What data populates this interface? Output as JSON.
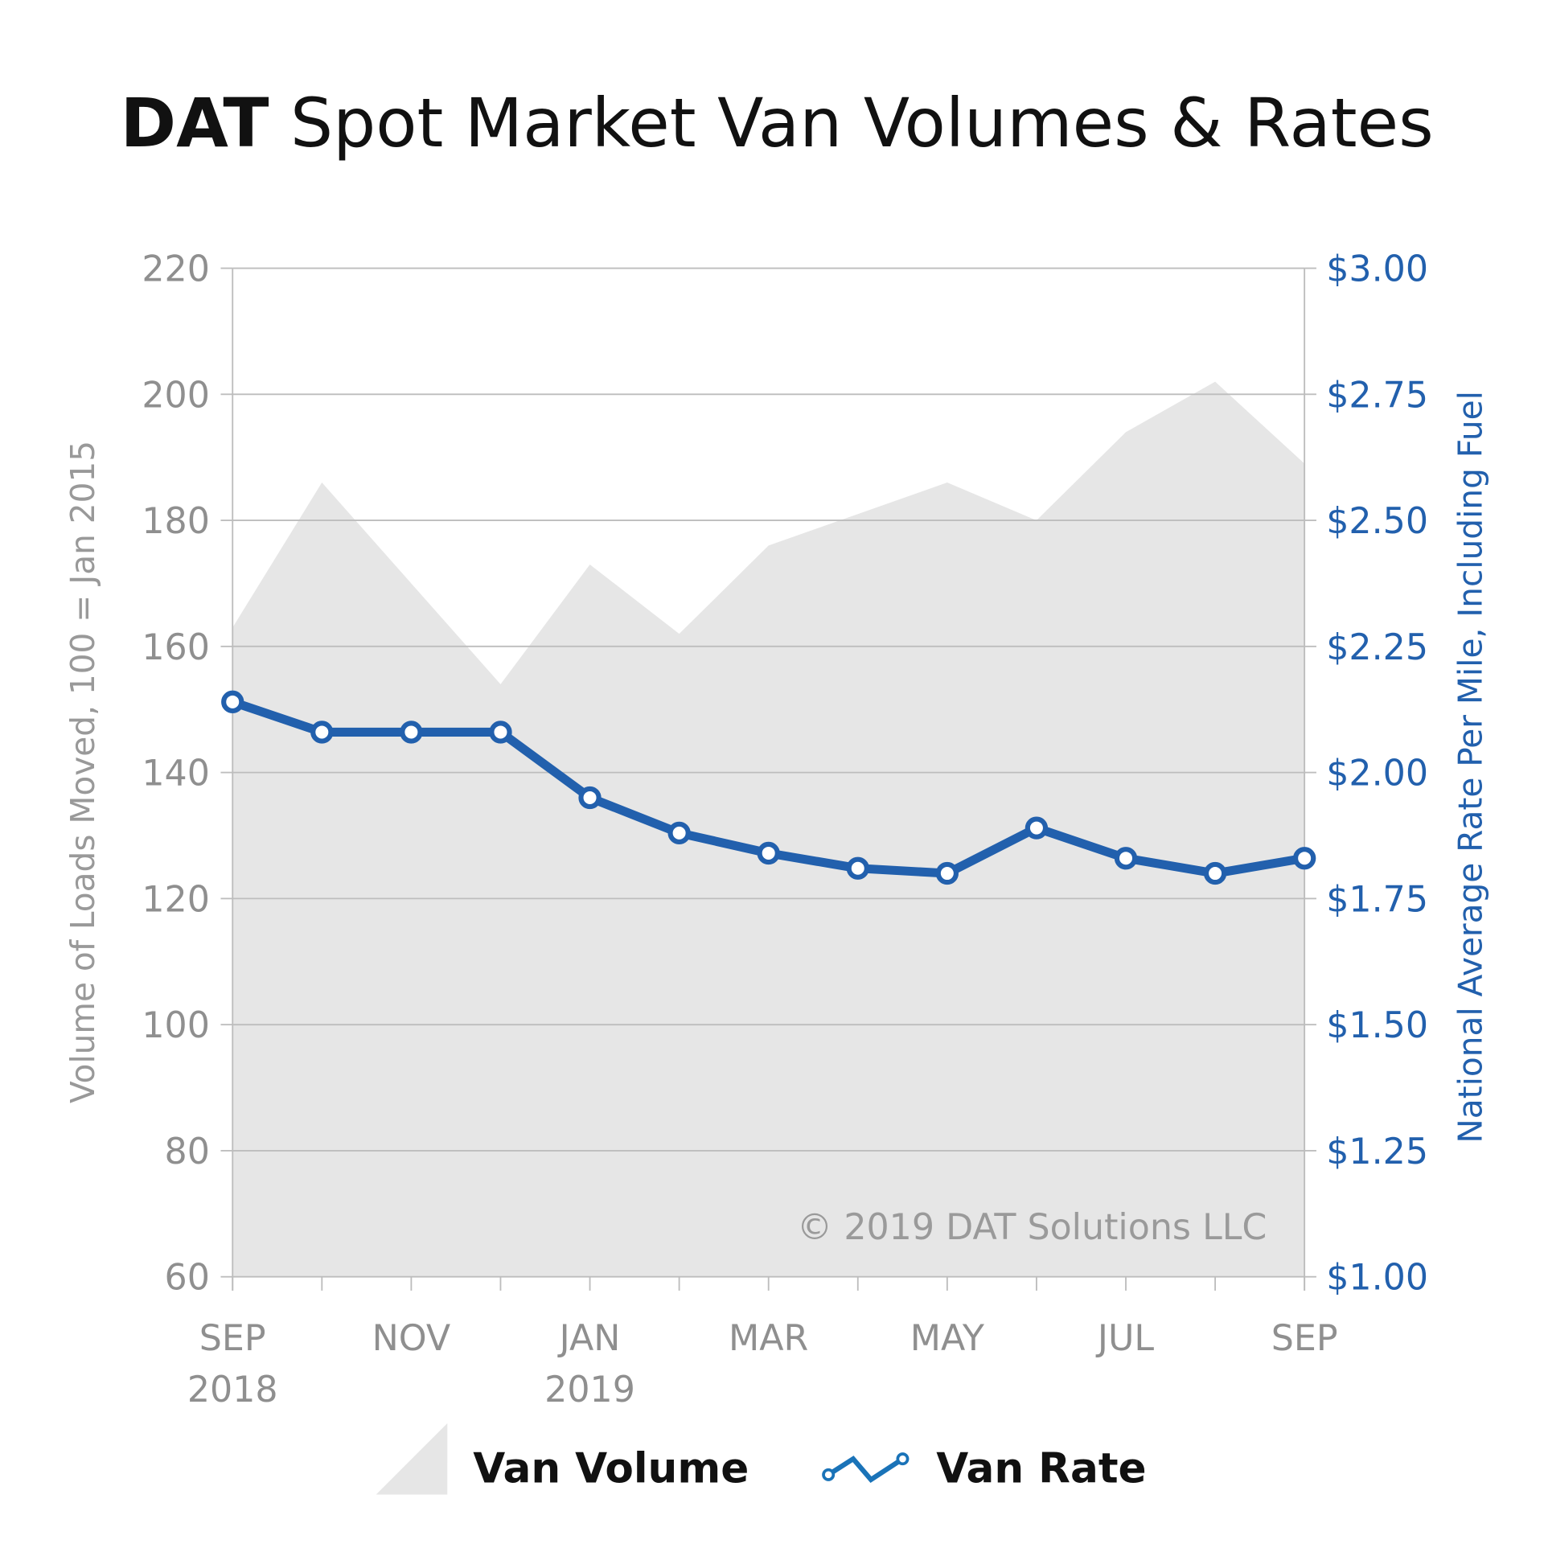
{
  "chart_data": {
    "type": "area+line",
    "title_bold": "DAT",
    "title_rest": " Spot Market Van Volumes & Rates",
    "categories": [
      "Sep 2018",
      "Oct 2018",
      "Nov 2018",
      "Dec 2018",
      "Jan 2019",
      "Feb 2019",
      "Mar 2019",
      "Apr 2019",
      "May 2019",
      "Jun 2019",
      "Jul 2019",
      "Aug 2019",
      "Sep 2019"
    ],
    "x_tick_labels": [
      {
        "index": 0,
        "line1": "SEP",
        "line2": "2018"
      },
      {
        "index": 2,
        "line1": "NOV",
        "line2": ""
      },
      {
        "index": 4,
        "line1": "JAN",
        "line2": "2019"
      },
      {
        "index": 6,
        "line1": "MAR",
        "line2": ""
      },
      {
        "index": 8,
        "line1": "MAY",
        "line2": ""
      },
      {
        "index": 10,
        "line1": "JUL",
        "line2": ""
      },
      {
        "index": 12,
        "line1": "SEP",
        "line2": ""
      }
    ],
    "ylabel_left": "Volume of Loads Moved, 100 = Jan 2015",
    "ylabel_right": "National Average Rate Per Mile, Including Fuel",
    "ylim_left": [
      60,
      220
    ],
    "yticks_left": [
      "60",
      "80",
      "100",
      "120",
      "140",
      "160",
      "180",
      "200",
      "220"
    ],
    "ylim_right": [
      1.0,
      3.0
    ],
    "yticks_right": [
      "$1.00",
      "$1.25",
      "$1.50",
      "$1.75",
      "$2.00",
      "$2.25",
      "$2.50",
      "$2.75",
      "$3.00"
    ],
    "grid": true,
    "series": [
      {
        "name": "Van Volume",
        "type": "area",
        "axis": "left",
        "color": "#e6e6e6",
        "values": [
          163,
          186,
          170,
          154,
          173,
          162,
          176,
          181,
          186,
          180,
          194,
          202,
          189
        ]
      },
      {
        "name": "Van Rate",
        "type": "line",
        "axis": "right",
        "color": "#2260ad",
        "values": [
          2.14,
          2.08,
          2.08,
          2.08,
          1.95,
          1.88,
          1.84,
          1.81,
          1.8,
          1.89,
          1.83,
          1.8,
          1.83
        ]
      }
    ],
    "legend_position": "bottom",
    "annotation": "© 2019 DAT Solutions LLC"
  }
}
